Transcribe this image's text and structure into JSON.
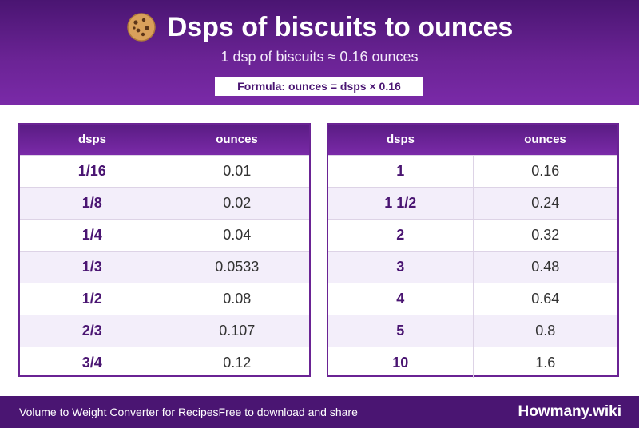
{
  "header": {
    "title": "Dsps of biscuits to ounces",
    "subtitle": "1 dsp of biscuits ≈ 0.16 ounces",
    "formula": "Formula: ounces = dsps × 0.16",
    "icon": "cookie-icon"
  },
  "tables": {
    "left": {
      "col1": "dsps",
      "col2": "ounces",
      "rows": [
        {
          "dsps": "1/16",
          "ounces": "0.01"
        },
        {
          "dsps": "1/8",
          "ounces": "0.02"
        },
        {
          "dsps": "1/4",
          "ounces": "0.04"
        },
        {
          "dsps": "1/3",
          "ounces": "0.0533"
        },
        {
          "dsps": "1/2",
          "ounces": "0.08"
        },
        {
          "dsps": "2/3",
          "ounces": "0.107"
        },
        {
          "dsps": "3/4",
          "ounces": "0.12"
        }
      ]
    },
    "right": {
      "col1": "dsps",
      "col2": "ounces",
      "rows": [
        {
          "dsps": "1",
          "ounces": "0.16"
        },
        {
          "dsps": "1 1/2",
          "ounces": "0.24"
        },
        {
          "dsps": "2",
          "ounces": "0.32"
        },
        {
          "dsps": "3",
          "ounces": "0.48"
        },
        {
          "dsps": "4",
          "ounces": "0.64"
        },
        {
          "dsps": "5",
          "ounces": "0.8"
        },
        {
          "dsps": "10",
          "ounces": "1.6"
        }
      ]
    }
  },
  "footer": {
    "left": "Volume to Weight Converter for RecipesFree to download and share",
    "brand": "Howmany.wiki"
  },
  "colors": {
    "primary": "#6a2394",
    "dark": "#4a1572",
    "row_alt": "#f3eefa"
  }
}
